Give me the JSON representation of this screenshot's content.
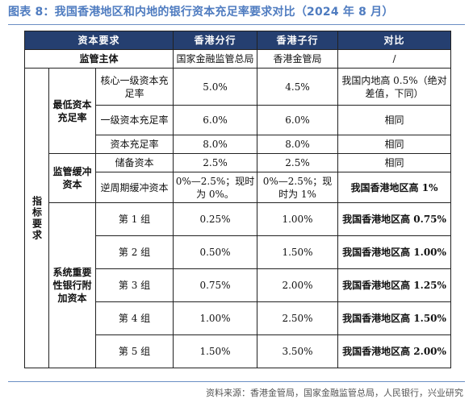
{
  "title": "图表 8：我国香港地区和内地的银行资本充足率要求对比（2024 年 8 月）",
  "header": {
    "col1": "资本要求",
    "col2": "香港分行",
    "col3": "香港子行",
    "col4": "对比"
  },
  "supervisor": {
    "label": "监管主体",
    "branch": "国家金融监管总局",
    "subsidiary": "香港金管局",
    "compare": "/"
  },
  "indicator_label": "指标要求",
  "groups": {
    "min_car": "最低资本充足率",
    "buffer": "监管缓冲资本",
    "dsib": "系统重要性银行附加资本"
  },
  "rows": [
    {
      "item": "核心一级资本充足率",
      "branch": "5.0%",
      "subsidiary": "4.5%",
      "compare": "我国内地高 0.5%（绝对差值，下同）"
    },
    {
      "item": "一级资本充足率",
      "branch": "6.0%",
      "subsidiary": "6.0%",
      "compare": "相同"
    },
    {
      "item": "资本充足率",
      "branch": "8.0%",
      "subsidiary": "8.0%",
      "compare": "相同"
    },
    {
      "item": "储备资本",
      "branch": "2.5%",
      "subsidiary": "2.5%",
      "compare": "相同"
    },
    {
      "item": "逆周期缓冲资本",
      "branch": "0%—2.5%；现时为 0%。",
      "subsidiary": "0%—2.5%；现时为 1%",
      "compare": "我国香港地区高 1%"
    },
    {
      "item": "第 1 组",
      "branch": "0.25%",
      "subsidiary": "1.00%",
      "compare": "我国香港地区高 0.75%"
    },
    {
      "item": "第 2 组",
      "branch": "0.50%",
      "subsidiary": "1.50%",
      "compare": "我国香港地区高 1.00%"
    },
    {
      "item": "第 3 组",
      "branch": "0.75%",
      "subsidiary": "2.00%",
      "compare": "我国香港地区高 1.25%"
    },
    {
      "item": "第 4 组",
      "branch": "1.00%",
      "subsidiary": "2.50%",
      "compare": "我国香港地区高 1.50%"
    },
    {
      "item": "第 5 组",
      "branch": "1.50%",
      "subsidiary": "3.50%",
      "compare": "我国香港地区高 2.00%"
    }
  ],
  "source": "资料来源：香港金管局，国家金融监管总局，人民银行，兴业研究"
}
